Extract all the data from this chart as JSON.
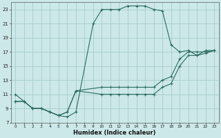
{
  "title": "",
  "xlabel": "Humidex (Indice chaleur)",
  "bg_color": "#cce8e8",
  "grid_color": "#a8cccc",
  "line_color": "#2a6b5e",
  "xlim": [
    -0.5,
    23.5
  ],
  "ylim": [
    7,
    24
  ],
  "xticks": [
    0,
    1,
    2,
    3,
    4,
    5,
    6,
    7,
    8,
    9,
    10,
    11,
    12,
    13,
    14,
    15,
    16,
    17,
    18,
    19,
    20,
    21,
    22,
    23
  ],
  "yticks": [
    7,
    9,
    11,
    13,
    15,
    17,
    19,
    21,
    23
  ],
  "line1_x": [
    0,
    1,
    2,
    3,
    4,
    5,
    6,
    7,
    9,
    10,
    11,
    12,
    13,
    14,
    15,
    16,
    17,
    18,
    19,
    20,
    21,
    22,
    23
  ],
  "line1_y": [
    11,
    10,
    9,
    9,
    8.5,
    8,
    7.8,
    8.5,
    21,
    23,
    23,
    23,
    23.5,
    23.5,
    23.5,
    23,
    22.8,
    18,
    17,
    17.2,
    16.5,
    17.2,
    17.2
  ],
  "line2_x": [
    0,
    1,
    2,
    3,
    4,
    5,
    6,
    7,
    10,
    11,
    12,
    13,
    14,
    15,
    16,
    17,
    18,
    19,
    20,
    21,
    22,
    23
  ],
  "line2_y": [
    10,
    10,
    9,
    9,
    8.5,
    8,
    8.5,
    11.5,
    12,
    12,
    12,
    12,
    12,
    12,
    12,
    13,
    13.5,
    16,
    17,
    17,
    17,
    17.2
  ],
  "line3_x": [
    0,
    1,
    2,
    3,
    4,
    5,
    6,
    7,
    10,
    11,
    12,
    13,
    14,
    15,
    16,
    17,
    18,
    19,
    20,
    21,
    22,
    23
  ],
  "line3_y": [
    10,
    10,
    9,
    9,
    8.5,
    8,
    8.5,
    11.5,
    11,
    11,
    11,
    11,
    11,
    11,
    11,
    12,
    12.5,
    15,
    16.5,
    16.5,
    16.8,
    17.2
  ]
}
